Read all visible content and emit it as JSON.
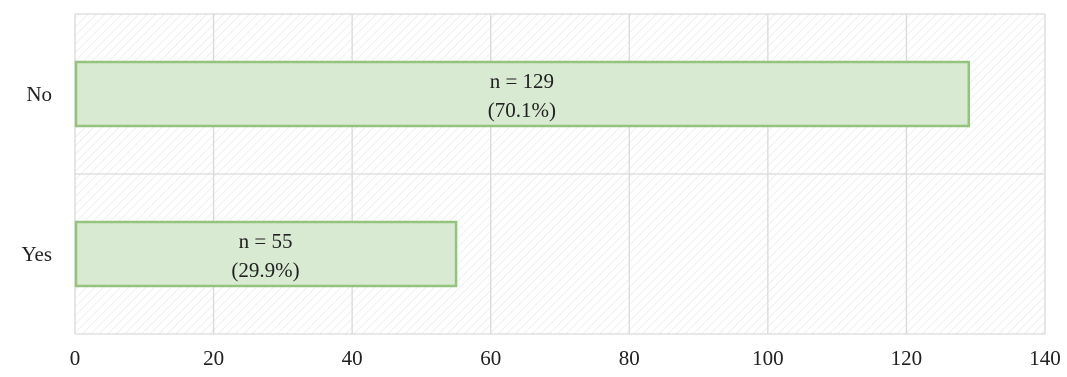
{
  "chart_data": {
    "type": "bar",
    "orientation": "horizontal",
    "categories": [
      "No",
      "Yes"
    ],
    "values": [
      129,
      55
    ],
    "data_labels": [
      [
        "n = 129",
        "(70.1%)"
      ],
      [
        "n = 55",
        "(29.9%)"
      ]
    ],
    "x_ticks": [
      "0",
      "20",
      "40",
      "60",
      "80",
      "100",
      "120",
      "140"
    ],
    "xlim": [
      0,
      140
    ],
    "grid": true,
    "legend": "none",
    "title": "",
    "xlabel": "",
    "ylabel": ""
  },
  "colors": {
    "bar_fill": "#d9ead3",
    "bar_stroke": "#93c47d",
    "grid": "#d9d9d9",
    "plot_background_hatch": "#e6e6e6"
  }
}
